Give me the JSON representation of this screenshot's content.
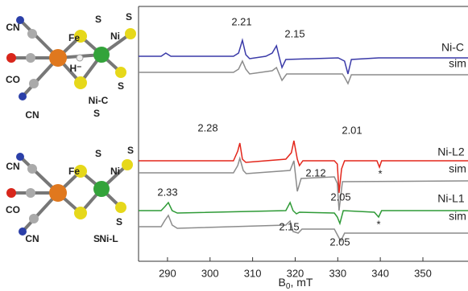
{
  "chart_data": {
    "type": "line",
    "x_label": {
      "text": "B",
      "subscript": "0",
      "suffix": ", mT"
    },
    "xlim": [
      283.2,
      360.6
    ],
    "xticks": [
      290,
      300,
      310,
      320,
      330,
      340,
      350
    ],
    "ylim": [
      0,
      317
    ],
    "series": [
      {
        "name": "Ni-C",
        "color": "#3a3aa8",
        "x": [
          283.2,
          288.5,
          289.6,
          290.8,
          305.5,
          306.7,
          307.6,
          308.4,
          309.3,
          313.1,
          314.6,
          315.6,
          316.3,
          316.9,
          317.8,
          330.1,
          331.6,
          332.4,
          333.2,
          339.6,
          360.6
        ],
        "values": [
          255,
          255,
          259,
          255,
          255,
          259,
          275,
          257,
          252,
          255,
          259,
          268,
          253,
          241,
          251,
          253,
          249,
          233,
          251,
          253,
          253
        ]
      },
      {
        "name": "sim",
        "color": "#8c8c8c",
        "x": [
          283.2,
          305.5,
          306.7,
          307.6,
          308.4,
          309.3,
          314.6,
          315.6,
          316.9,
          318.0,
          331.1,
          331.6,
          332.4,
          333.2,
          360.6
        ],
        "values": [
          235,
          235,
          239,
          249,
          239,
          233,
          237,
          241,
          225,
          233,
          233,
          229,
          221,
          232,
          232
        ]
      },
      {
        "name": "Ni-L2",
        "color": "#e3261b",
        "x": [
          283.2,
          305.5,
          306.5,
          307.0,
          307.6,
          308.4,
          317.8,
          319.1,
          319.7,
          320.5,
          321.0,
          321.8,
          329.2,
          329.9,
          330.3,
          330.9,
          331.6,
          339.2,
          339.8,
          340.3,
          360.6
        ],
        "values": [
          125,
          125,
          137,
          147,
          127,
          123,
          127,
          135,
          150,
          127,
          119,
          125,
          125,
          121,
          85,
          115,
          125,
          125,
          117,
          125,
          125
        ]
      },
      {
        "name": "sim",
        "color": "#8c8c8c",
        "x": [
          283.2,
          305.5,
          306.5,
          307.0,
          307.8,
          308.5,
          318.8,
          319.7,
          320.5,
          321.4,
          329.2,
          329.9,
          330.3,
          331.1,
          360.6
        ],
        "values": [
          110,
          110,
          119,
          128,
          113,
          109,
          113,
          125,
          87,
          103,
          105,
          97,
          63,
          99,
          100
        ]
      },
      {
        "name": "Ni-L1",
        "color": "#2e9a36",
        "x": [
          283.2,
          288.5,
          289.4,
          290.2,
          291.1,
          292.3,
          317.8,
          318.8,
          319.5,
          320.3,
          321.0,
          329.2,
          329.9,
          330.5,
          331.3,
          338.6,
          339.6,
          340.3,
          360.6
        ],
        "values": [
          63,
          63,
          68,
          73,
          63,
          60,
          63,
          73,
          63,
          59,
          61,
          60,
          55,
          47,
          63,
          61,
          55,
          63,
          63
        ]
      },
      {
        "name": "sim",
        "color": "#8c8c8c",
        "x": [
          283.2,
          288.5,
          289.4,
          290.2,
          291.1,
          292.3,
          317.8,
          318.8,
          319.5,
          320.7,
          321.6,
          329.2,
          329.9,
          330.7,
          331.6,
          360.6
        ],
        "values": [
          43,
          43,
          51,
          57,
          45,
          41,
          45,
          50,
          37,
          35,
          40,
          40,
          33,
          25,
          35,
          35
        ]
      }
    ],
    "annotations": [
      "2.21",
      "2.15",
      "2.01",
      "2.28",
      "2.12",
      "2.33",
      "2.15",
      "2.05",
      "2.05",
      "*",
      "*"
    ]
  },
  "structures": [
    {
      "name": "Ni-C",
      "labels": [
        "CN",
        "Fe",
        "S",
        "Ni",
        "S",
        "CO",
        "H⁻",
        "S",
        "S",
        "CN"
      ]
    },
    {
      "name": "Ni-L",
      "labels": [
        "CN",
        "Fe",
        "S",
        "Ni",
        "S",
        "CO",
        "S",
        "S",
        "CN"
      ]
    }
  ]
}
